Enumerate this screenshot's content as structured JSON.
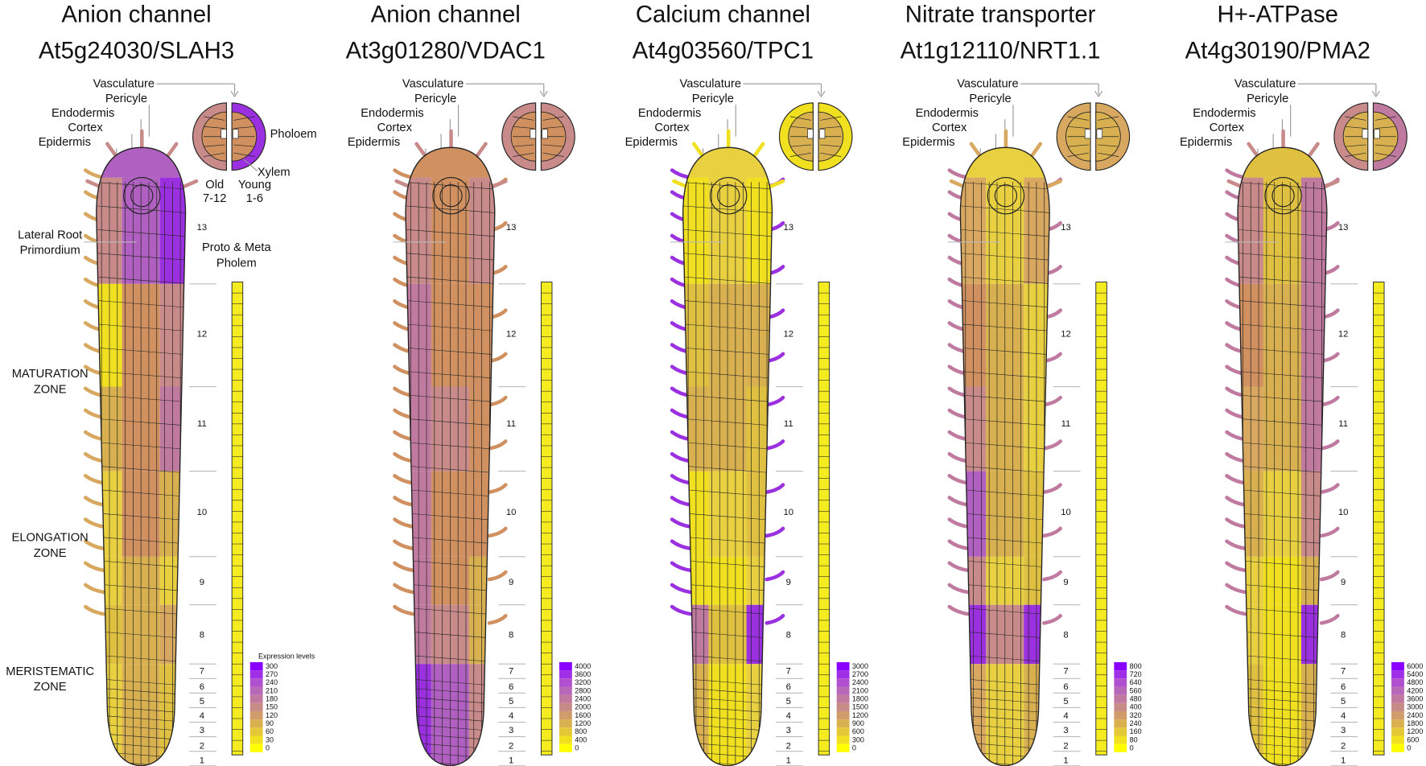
{
  "panels": [
    {
      "title": [
        "Anion channel",
        "At5g24030/SLAH3"
      ],
      "legend": [
        300,
        270,
        240,
        210,
        180,
        150,
        120,
        90,
        60,
        30,
        0
      ]
    },
    {
      "title": [
        "Anion channel",
        "At3g01280/VDAC1"
      ],
      "legend": [
        4000,
        3600,
        3200,
        2800,
        2400,
        2000,
        1600,
        1200,
        800,
        400,
        0
      ]
    },
    {
      "title": [
        "Calcium channel",
        "At4g03560/TPC1"
      ],
      "legend": [
        3000,
        2700,
        2400,
        2100,
        1800,
        1500,
        1200,
        900,
        600,
        300,
        0
      ]
    },
    {
      "title": [
        "Nitrate transporter",
        "At1g12110/NRT1.1"
      ],
      "legend": [
        800,
        720,
        640,
        560,
        480,
        400,
        320,
        240,
        160,
        80,
        0
      ]
    },
    {
      "title": [
        "H+-ATPase",
        "At4g30190/PMA2"
      ],
      "legend": [
        6000,
        5400,
        4800,
        4200,
        3600,
        3000,
        2400,
        1800,
        1200,
        600,
        0
      ]
    }
  ],
  "tissues": [
    "Vasculature",
    "Pericyle",
    "Endodermis",
    "Cortex",
    "Epidermis"
  ],
  "sections": [
    13,
    12,
    11,
    10,
    9,
    8,
    7,
    6,
    5,
    4,
    3,
    2,
    1
  ],
  "cross_section": {
    "phloem": "Pholoem",
    "xylem": "Xylem",
    "old": [
      "Old",
      "7-12"
    ],
    "young": [
      "Young",
      "1-6"
    ]
  },
  "lateral_root": [
    "Lateral Root",
    "Primordium"
  ],
  "protophloem": [
    "Proto & Meta",
    "Pholem"
  ],
  "zones": [
    [
      "MATURATION",
      "ZONE"
    ],
    [
      "ELONGATION",
      "ZONE"
    ],
    [
      "MERISTEMATIC",
      "ZONE"
    ]
  ],
  "legend_title": "Expression levels"
}
